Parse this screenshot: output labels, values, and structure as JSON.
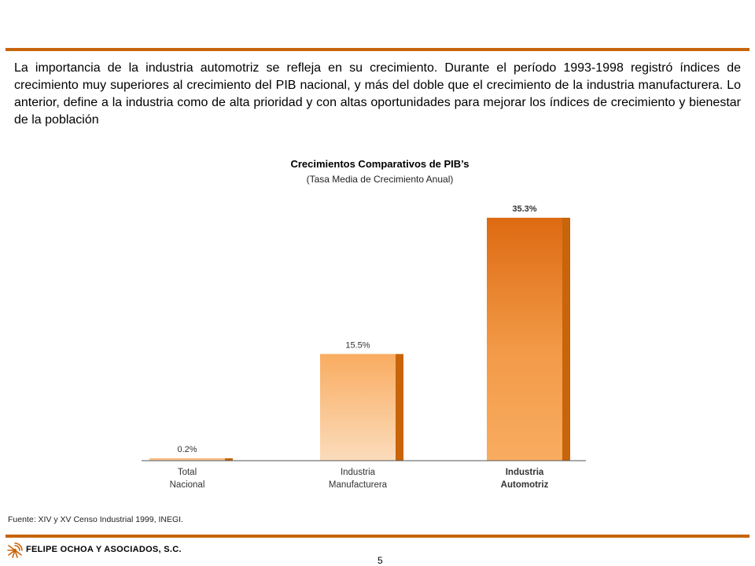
{
  "intro_text": "La importancia de la industria automotriz se refleja en su crecimiento. Durante el período 1993-1998 registró índices de crecimiento muy superiores al crecimiento del PIB nacional, y más del doble que el crecimiento de la industria manufacturera. Lo anterior, define a la industria como de alta prioridad y con altas oportunidades para mejorar los índices de crecimiento y bienestar de la población",
  "chart_data": {
    "type": "bar",
    "title": "Crecimientos Comparativos de PIB’s",
    "subtitle": "(Tasa Media de Crecimiento Anual)",
    "categories": [
      [
        "Total",
        "Nacional"
      ],
      [
        "Industria",
        "Manufacturera"
      ],
      [
        "Industria",
        "Automotriz"
      ]
    ],
    "values": [
      0.2,
      15.5,
      35.3
    ],
    "value_labels": [
      "0.2%",
      "15.5%",
      "35.3%"
    ],
    "unit": "%",
    "ylim": [
      0,
      35.3
    ],
    "grid": false,
    "legend": "none",
    "bold_categories": [
      false,
      false,
      true
    ],
    "colors": {
      "bar_light": "#fbdcbc",
      "bar_mid": "#f9ac60",
      "bar_dark": "#de6a12",
      "side": "#c8640a"
    }
  },
  "source_note": "Fuente: XIV y XV Censo Industrial 1999, INEGI.",
  "company_name": "FELIPE OCHOA Y ASOCIADOS, S.C.",
  "page_number": "5",
  "brand_color": "#c8640a",
  "logo_icon": "sunburst-logo-icon"
}
